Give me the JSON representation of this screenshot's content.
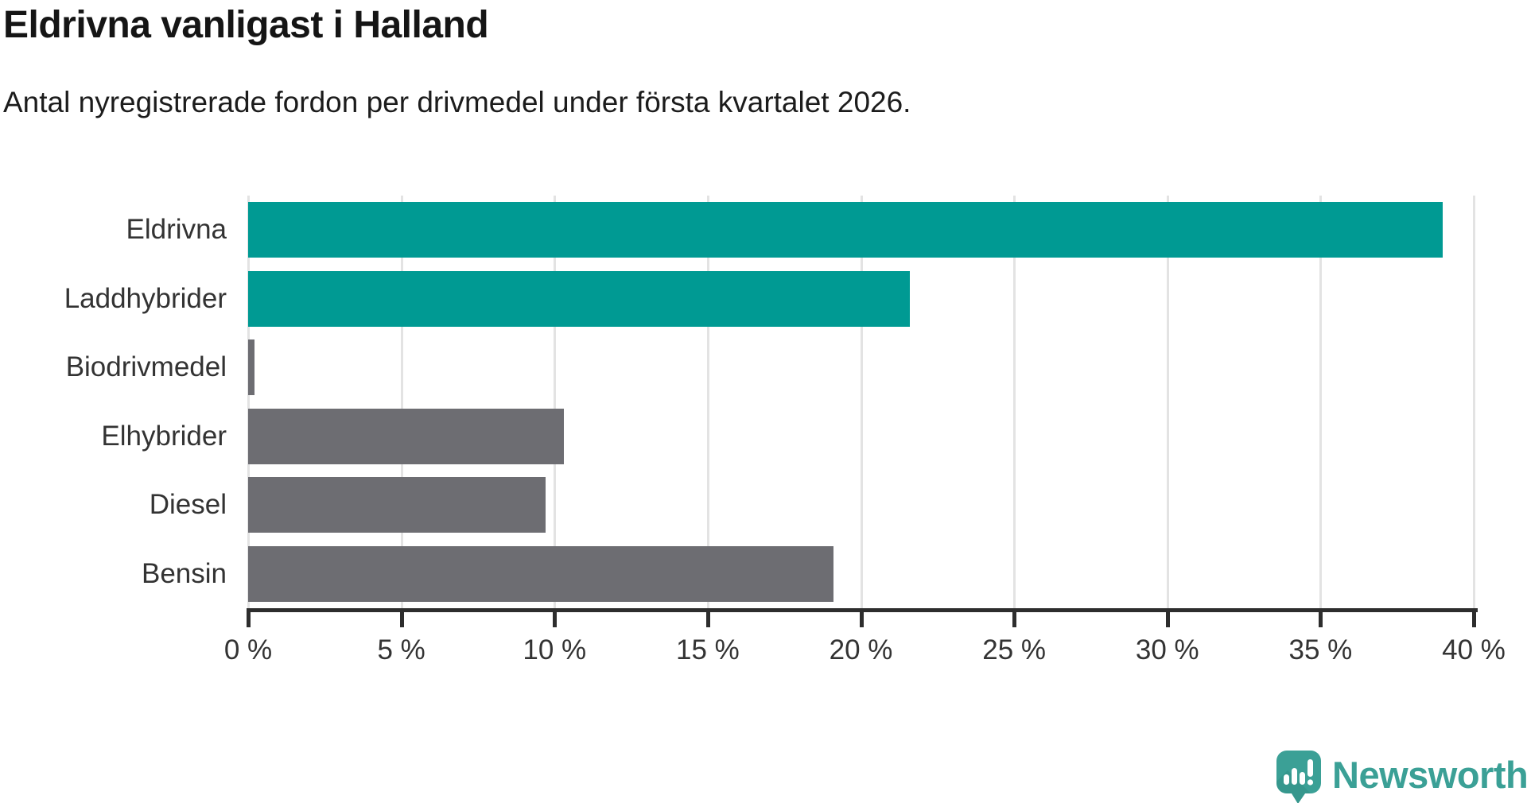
{
  "title": "Eldrivna vanligast i Halland",
  "subtitle": "Antal nyregistrerade fordon per drivmedel under första kvartalet 2026.",
  "chart_data": {
    "type": "bar",
    "orientation": "horizontal",
    "title": "Eldrivna vanligast i Halland",
    "subtitle": "Antal nyregistrerade fordon per drivmedel under första kvartalet 2026.",
    "categories": [
      "Eldrivna",
      "Laddhybrider",
      "Biodrivmedel",
      "Elhybrider",
      "Diesel",
      "Bensin"
    ],
    "values": [
      39.0,
      21.6,
      0.2,
      10.3,
      9.7,
      19.1
    ],
    "unit": "%",
    "xlim": [
      0,
      40
    ],
    "x_ticks": [
      0,
      5,
      10,
      15,
      20,
      25,
      30,
      35,
      40
    ],
    "x_tick_labels": [
      "0 %",
      "5 %",
      "10 %",
      "15 %",
      "20 %",
      "25 %",
      "30 %",
      "35 %",
      "40 %"
    ],
    "grid": "vertical-on",
    "legend": "none",
    "bar_colors": [
      "#009a93",
      "#009a93",
      "#6d6d72",
      "#6d6d72",
      "#6d6d72",
      "#6d6d72"
    ],
    "highlight_color": "#009a93",
    "default_color": "#6d6d72",
    "axis_color": "#2d2d2d",
    "gridline_color": "#e3e3e3"
  },
  "branding": {
    "logo_text": "Newsworthy",
    "logo_color": "#3ba096",
    "logo_icon": "speech-bubble-bar-chart-icon"
  }
}
